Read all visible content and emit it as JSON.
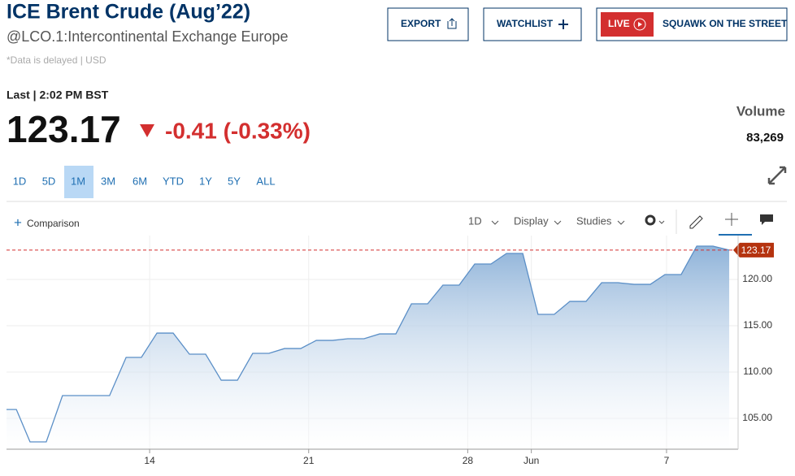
{
  "header": {
    "title": "ICE Brent Crude (Aug’22)",
    "subtitle": "@LCO.1:Intercontinental Exchange Europe",
    "note": "*Data is delayed | USD"
  },
  "buttons": {
    "export": "EXPORT",
    "watchlist": "WATCHLIST",
    "live": "LIVE",
    "squawk": "SQUAWK ON THE STREET"
  },
  "quote": {
    "last": "Last | 2:02 PM BST",
    "price": "123.17",
    "change": "-0.41 (-0.33%)",
    "volume_label": "Volume",
    "volume": "83,269"
  },
  "ranges": [
    "1D",
    "5D",
    "1M",
    "3M",
    "6M",
    "YTD",
    "1Y",
    "5Y",
    "ALL"
  ],
  "toolbar": {
    "comparison": "Comparison",
    "interval": "1D",
    "display": "Display",
    "studies": "Studies"
  },
  "chart_data": {
    "type": "area",
    "color": "#5b8fc7",
    "grid": true,
    "x": [
      0,
      0.31,
      0.74,
      1.25,
      1.76,
      2.27,
      3.24,
      3.76,
      4.24,
      4.73,
      5.24,
      5.75,
      6.26,
      6.75,
      7.26,
      7.74,
      8.25,
      8.74,
      9.25,
      9.74,
      10.25,
      10.73,
      11.24,
      11.73,
      12.24,
      12.73,
      13.24,
      13.72,
      14.23,
      14.72,
      15.23,
      15.72,
      16.23,
      16.71,
      17.22,
      17.71,
      18.22,
      18.71,
      19.22,
      19.73,
      20.24,
      20.7,
      21.21,
      21.7,
      22.21,
      22.72
    ],
    "values": [
      105.96,
      105.96,
      102.46,
      102.46,
      107.46,
      107.46,
      107.46,
      111.58,
      111.58,
      114.21,
      114.21,
      111.93,
      111.93,
      109.12,
      109.12,
      112.02,
      112.02,
      112.54,
      112.54,
      113.42,
      113.42,
      113.6,
      113.6,
      114.12,
      114.12,
      117.37,
      117.37,
      119.39,
      119.39,
      121.67,
      121.67,
      122.81,
      122.81,
      116.23,
      116.23,
      117.63,
      117.63,
      119.65,
      119.65,
      119.47,
      119.47,
      120.53,
      120.53,
      123.6,
      123.6,
      123.17
    ],
    "xlim": [
      0,
      23
    ],
    "xticks": [
      {
        "value": 4.5,
        "label": "14"
      },
      {
        "value": 9.5,
        "label": "21"
      },
      {
        "value": 14.5,
        "label": "28"
      },
      {
        "value": 16.5,
        "label": "Jun"
      },
      {
        "value": 20.75,
        "label": "7"
      }
    ],
    "ylim": [
      101.67,
      124.74
    ],
    "yticks": [
      {
        "value": 105,
        "label": "105.00"
      },
      {
        "value": 110,
        "label": "110.00"
      },
      {
        "value": 115,
        "label": "115.00"
      },
      {
        "value": 120,
        "label": "120.00"
      }
    ],
    "last_value": 123.17
  }
}
